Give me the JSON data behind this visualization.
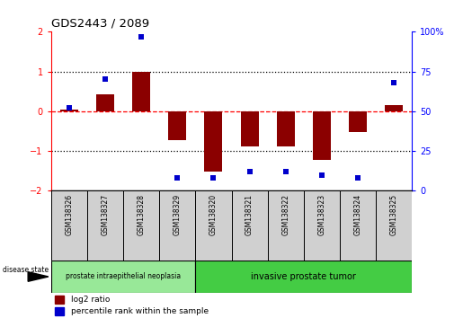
{
  "title": "GDS2443 / 2089",
  "samples": [
    "GSM138326",
    "GSM138327",
    "GSM138328",
    "GSM138329",
    "GSM138320",
    "GSM138321",
    "GSM138322",
    "GSM138323",
    "GSM138324",
    "GSM138325"
  ],
  "log2_ratio": [
    0.05,
    0.42,
    1.0,
    -0.72,
    -1.52,
    -0.88,
    -0.88,
    -1.22,
    -0.52,
    0.15
  ],
  "percentile_rank": [
    52,
    70,
    97,
    8,
    8,
    12,
    12,
    10,
    8,
    68
  ],
  "bar_color": "#8B0000",
  "dot_color": "#0000CC",
  "ylim_left": [
    -2,
    2
  ],
  "ylim_right": [
    0,
    100
  ],
  "yticks_left": [
    -2,
    -1,
    0,
    1,
    2
  ],
  "yticks_right": [
    0,
    25,
    50,
    75,
    100
  ],
  "ytick_labels_right": [
    "0",
    "25",
    "50",
    "75",
    "100%"
  ],
  "group1_label": "prostate intraepithelial neoplasia",
  "group2_label": "invasive prostate tumor",
  "group1_color": "#98E898",
  "group2_color": "#44CC44",
  "legend_red": "log2 ratio",
  "legend_blue": "percentile rank within the sample",
  "disease_state_label": "disease state",
  "bar_width": 0.5,
  "n_group1": 4,
  "n_group2": 6
}
